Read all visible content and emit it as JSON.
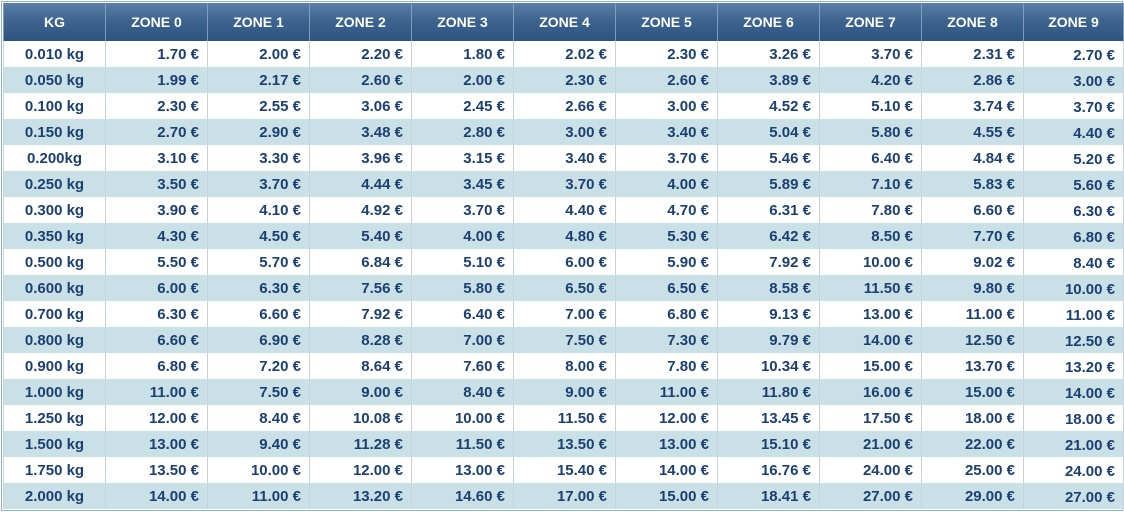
{
  "table": {
    "headers": [
      "KG",
      "ZONE 0",
      "ZONE 1",
      "ZONE 2",
      "ZONE 3",
      "ZONE 4",
      "ZONE 5",
      "ZONE 6",
      "ZONE 7",
      "ZONE 8",
      "ZONE 9"
    ],
    "rows": [
      [
        "0.010 kg",
        "1.70 €",
        "2.00 €",
        "2.20 €",
        "1.80 €",
        "2.02 €",
        "2.30 €",
        "3.26 €",
        "3.70 €",
        "2.31 €",
        "2.70 €"
      ],
      [
        "0.050 kg",
        "1.99 €",
        "2.17 €",
        "2.60 €",
        "2.00 €",
        "2.30 €",
        "2.60 €",
        "3.89 €",
        "4.20 €",
        "2.86 €",
        "3.00 €"
      ],
      [
        "0.100 kg",
        "2.30 €",
        "2.55 €",
        "3.06 €",
        "2.45 €",
        "2.66 €",
        "3.00 €",
        "4.52 €",
        "5.10 €",
        "3.74 €",
        "3.70 €"
      ],
      [
        "0.150 kg",
        "2.70 €",
        "2.90 €",
        "3.48 €",
        "2.80 €",
        "3.00 €",
        "3.40 €",
        "5.04 €",
        "5.80 €",
        "4.55 €",
        "4.40 €"
      ],
      [
        "0.200kg",
        "3.10 €",
        "3.30 €",
        "3.96 €",
        "3.15 €",
        "3.40 €",
        "3.70 €",
        "5.46 €",
        "6.40 €",
        "4.84 €",
        "5.20 €"
      ],
      [
        "0.250 kg",
        "3.50 €",
        "3.70 €",
        "4.44 €",
        "3.45 €",
        "3.70 €",
        "4.00 €",
        "5.89 €",
        "7.10 €",
        "5.83 €",
        "5.60 €"
      ],
      [
        "0.300 kg",
        "3.90 €",
        "4.10 €",
        "4.92 €",
        "3.70 €",
        "4.40 €",
        "4.70 €",
        "6.31 €",
        "7.80 €",
        "6.60 €",
        "6.30 €"
      ],
      [
        "0.350 kg",
        "4.30 €",
        "4.50 €",
        "5.40 €",
        "4.00 €",
        "4.80 €",
        "5.30 €",
        "6.42 €",
        "8.50 €",
        "7.70 €",
        "6.80 €"
      ],
      [
        "0.500 kg",
        "5.50 €",
        "5.70 €",
        "6.84 €",
        "5.10 €",
        "6.00 €",
        "5.90 €",
        "7.92 €",
        "10.00 €",
        "9.02 €",
        "8.40 €"
      ],
      [
        "0.600 kg",
        "6.00 €",
        "6.30 €",
        "7.56 €",
        "5.80 €",
        "6.50 €",
        "6.50 €",
        "8.58 €",
        "11.50 €",
        "9.80 €",
        "10.00 €"
      ],
      [
        "0.700 kg",
        "6.30 €",
        "6.60 €",
        "7.92 €",
        "6.40 €",
        "7.00 €",
        "6.80 €",
        "9.13 €",
        "13.00 €",
        "11.00 €",
        "11.00 €"
      ],
      [
        "0.800 kg",
        "6.60 €",
        "6.90 €",
        "8.28 €",
        "7.00 €",
        "7.50 €",
        "7.30 €",
        "9.79 €",
        "14.00 €",
        "12.50 €",
        "12.50 €"
      ],
      [
        "0.900 kg",
        "6.80 €",
        "7.20 €",
        "8.64 €",
        "7.60 €",
        "8.00 €",
        "7.80 €",
        "10.34 €",
        "15.00 €",
        "13.70 €",
        "13.20 €"
      ],
      [
        "1.000 kg",
        "11.00 €",
        "7.50 €",
        "9.00 €",
        "8.40 €",
        "9.00 €",
        "11.00 €",
        "11.80 €",
        "16.00 €",
        "15.00 €",
        "14.00 €"
      ],
      [
        "1.250 kg",
        "12.00 €",
        "8.40 €",
        "10.08 €",
        "10.00 €",
        "11.50 €",
        "12.00 €",
        "13.45 €",
        "17.50 €",
        "18.00 €",
        "18.00 €"
      ],
      [
        "1.500 kg",
        "13.00 €",
        "9.40 €",
        "11.28 €",
        "11.50 €",
        "13.50 €",
        "13.00 €",
        "15.10 €",
        "21.00 €",
        "22.00 €",
        "21.00 €"
      ],
      [
        "1.750 kg",
        "13.50 €",
        "10.00 €",
        "12.00 €",
        "13.00 €",
        "15.40 €",
        "14.00 €",
        "16.76 €",
        "24.00 €",
        "25.00 €",
        "24.00 €"
      ],
      [
        "2.000 kg",
        "14.00 €",
        "11.00 €",
        "13.20 €",
        "14.60 €",
        "17.00 €",
        "15.00 €",
        "18.41 €",
        "27.00 €",
        "29.00 €",
        "27.00 €"
      ]
    ]
  },
  "colors": {
    "header_gradient_top": "#5a7fa8",
    "header_gradient_bottom": "#2d5380",
    "header_text": "#ffffff",
    "cell_text": "#1c3f73",
    "row_alt_background": "#c9e0e6",
    "row_background": "#ffffff"
  }
}
